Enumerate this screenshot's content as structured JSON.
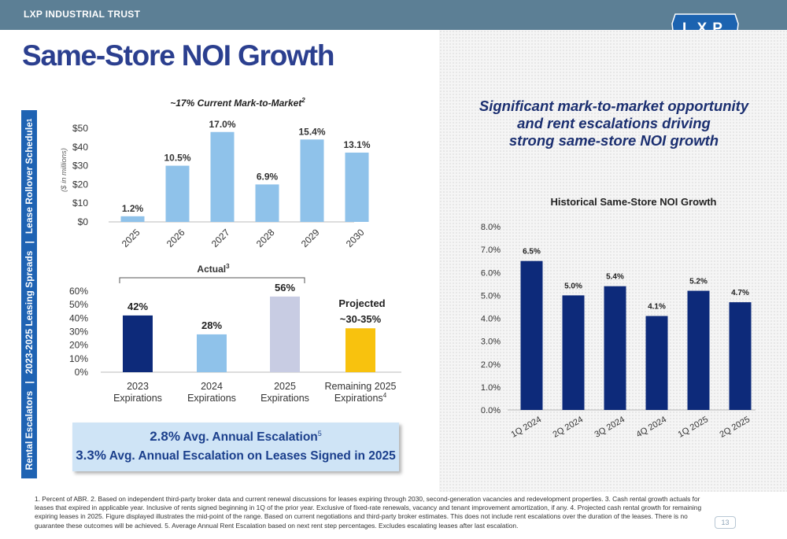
{
  "header": {
    "company": "LXP INDUSTRIAL TRUST",
    "logo_text": "LXP"
  },
  "page_title": "Same-Store NOI Growth",
  "sidebar": {
    "items": [
      "Rental Escalators",
      "2023-2025 Leasing Spreads",
      "Lease Rollover Schedule"
    ],
    "separator": "|",
    "superscript": "1"
  },
  "right_heading": [
    "Significant mark-to-market opportunity",
    "and rent escalations driving",
    "strong same-store NOI growth"
  ],
  "escalation_box": {
    "line1_pct": "2.8%",
    "line1_text": " Avg. Annual Escalation",
    "line1_sup": "5",
    "line2_pct": "3.3%",
    "line2_text": " Avg. Annual Escalation on Leases Signed in 2025"
  },
  "footnote": "1. Percent of ABR. 2. Based on independent third-party broker data and current renewal discussions for leases expiring through 2030, second-generation vacancies and redevelopment properties. 3. Cash rental growth actuals for leases that expired in applicable year. Inclusive of rents signed beginning in 1Q of the prior year. Exclusive of fixed-rate renewals, vacancy and tenant improvement amortization, if any. 4. Projected cash rental growth for remaining expiring leases in 2025. Figure displayed illustrates the mid-point of the range. Based on current negotiations and third-party broker estimates. This does not include rent escalations over the duration of the leases. There is no guarantee these outcomes will be achieved. 5. Average Annual Rent Escalation based on next rent step percentages. Excludes escalating leases after last escalation.",
  "page_number": "13",
  "colors": {
    "navy": "#0d2a7a",
    "light_blue": "#8fc2ea",
    "lavender": "#c8cce3",
    "gold": "#f8c20e",
    "title_blue": "#2b3f8f",
    "sidebar_blue": "#1f63b3"
  },
  "chart_data": [
    {
      "id": "rollover",
      "type": "bar",
      "title": "~17% Current Mark-to-Market",
      "title_sup": "2",
      "ylabel": "($ in millions)",
      "categories": [
        "2025",
        "2026",
        "2027",
        "2028",
        "2029",
        "2030"
      ],
      "values": [
        3,
        30,
        48,
        20,
        44,
        37
      ],
      "labels": [
        "1.2%",
        "10.5%",
        "17.0%",
        "6.9%",
        "15.4%",
        "13.1%"
      ],
      "ylim": [
        0,
        50
      ],
      "yticks": [
        "$0",
        "$10",
        "$20",
        "$30",
        "$40",
        "$50"
      ],
      "color": "#8fc2ea"
    },
    {
      "id": "spreads",
      "type": "bar",
      "bracket_label": "Actual",
      "bracket_sup": "3",
      "projected_label": "Projected",
      "categories": [
        [
          "2023",
          "Expirations"
        ],
        [
          "2024",
          "Expirations"
        ],
        [
          "2025",
          "Expirations"
        ],
        [
          "Remaining 2025",
          "Expirations"
        ]
      ],
      "category_sup": [
        "",
        "",
        "",
        "4"
      ],
      "values": [
        42,
        28,
        56,
        32.5
      ],
      "labels": [
        "42%",
        "28%",
        "56%",
        "~30-35%"
      ],
      "colors": [
        "#0d2a7a",
        "#8fc2ea",
        "#c8cce3",
        "#f8c20e"
      ],
      "ylim": [
        0,
        60
      ],
      "yticks": [
        "0%",
        "10%",
        "20%",
        "30%",
        "40%",
        "50%",
        "60%"
      ]
    },
    {
      "id": "noi",
      "type": "bar",
      "title": "Historical Same-Store NOI Growth",
      "categories": [
        "1Q 2024",
        "2Q 2024",
        "3Q 2024",
        "4Q 2024",
        "1Q 2025",
        "2Q 2025"
      ],
      "values": [
        6.5,
        5.0,
        5.4,
        4.1,
        5.2,
        4.7
      ],
      "labels": [
        "6.5%",
        "5.0%",
        "5.4%",
        "4.1%",
        "5.2%",
        "4.7%"
      ],
      "ylim": [
        0,
        8
      ],
      "yticks": [
        "0.0%",
        "1.0%",
        "2.0%",
        "3.0%",
        "4.0%",
        "5.0%",
        "6.0%",
        "7.0%",
        "8.0%"
      ],
      "color": "#0d2a7a"
    }
  ]
}
